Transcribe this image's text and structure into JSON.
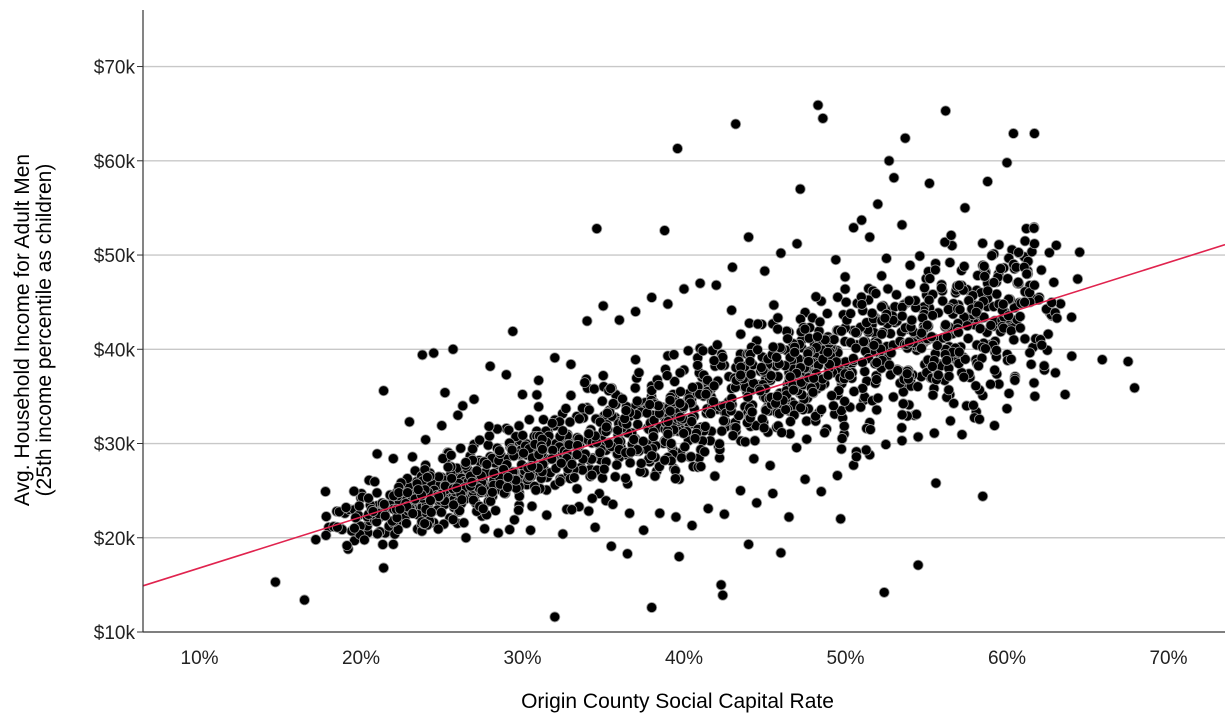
{
  "chart_data": {
    "type": "scatter",
    "title": "",
    "xlabel": "Origin County Social Capital Rate",
    "ylabel_line1": "Avg. Household Income for Adult Men",
    "ylabel_line2": "(25th income percentile as children)",
    "xlim": [
      0.065,
      0.735
    ],
    "ylim": [
      10000,
      76000
    ],
    "x_ticks": [
      0.1,
      0.2,
      0.3,
      0.4,
      0.5,
      0.6,
      0.7
    ],
    "x_tick_labels": [
      "10%",
      "20%",
      "30%",
      "40%",
      "50%",
      "60%",
      "70%"
    ],
    "y_ticks": [
      10000,
      20000,
      30000,
      40000,
      50000,
      60000,
      70000
    ],
    "y_tick_labels": [
      "$10k",
      "$20k",
      "$30k",
      "$40k",
      "$50k",
      "$60k",
      "$70k"
    ],
    "grid": "horizontal",
    "fit_line": {
      "x": [
        0.065,
        0.735
      ],
      "y": [
        14900,
        51100
      ],
      "color": "#e0234e"
    },
    "marker_color": "#000000",
    "points": [
      [
        0.147,
        15300
      ],
      [
        0.165,
        13400
      ],
      [
        0.178,
        24900
      ],
      [
        0.172,
        19800
      ],
      [
        0.18,
        21100
      ],
      [
        0.196,
        19700
      ],
      [
        0.214,
        35600
      ],
      [
        0.214,
        16800
      ],
      [
        0.238,
        39400
      ],
      [
        0.245,
        39600
      ],
      [
        0.252,
        35400
      ],
      [
        0.257,
        40000
      ],
      [
        0.263,
        34000
      ],
      [
        0.294,
        41900
      ],
      [
        0.32,
        11600
      ],
      [
        0.346,
        52800
      ],
      [
        0.38,
        12600
      ],
      [
        0.388,
        52600
      ],
      [
        0.396,
        61300
      ],
      [
        0.397,
        18000
      ],
      [
        0.423,
        15000
      ],
      [
        0.424,
        13900
      ],
      [
        0.432,
        63900
      ],
      [
        0.44,
        19300
      ],
      [
        0.46,
        18400
      ],
      [
        0.472,
        57000
      ],
      [
        0.483,
        65900
      ],
      [
        0.486,
        64500
      ],
      [
        0.497,
        22000
      ],
      [
        0.524,
        14200
      ],
      [
        0.527,
        60000
      ],
      [
        0.537,
        62400
      ],
      [
        0.545,
        17100
      ],
      [
        0.556,
        25800
      ],
      [
        0.562,
        65300
      ],
      [
        0.585,
        24400
      ],
      [
        0.604,
        62900
      ],
      [
        0.617,
        62900
      ],
      [
        0.645,
        50300
      ],
      [
        0.659,
        38900
      ],
      [
        0.675,
        38700
      ],
      [
        0.679,
        35900
      ],
      [
        0.64,
        43400
      ],
      [
        0.636,
        35200
      ],
      [
        0.62,
        45500
      ],
      [
        0.612,
        52800
      ],
      [
        0.6,
        59800
      ],
      [
        0.588,
        57800
      ],
      [
        0.574,
        55000
      ],
      [
        0.566,
        51000
      ],
      [
        0.552,
        57600
      ],
      [
        0.546,
        49900
      ],
      [
        0.53,
        58200
      ],
      [
        0.52,
        55400
      ],
      [
        0.51,
        53700
      ],
      [
        0.505,
        52900
      ],
      [
        0.494,
        49500
      ],
      [
        0.47,
        51200
      ],
      [
        0.46,
        50200
      ],
      [
        0.45,
        48300
      ],
      [
        0.44,
        51900
      ],
      [
        0.43,
        48700
      ],
      [
        0.42,
        46800
      ],
      [
        0.41,
        47000
      ],
      [
        0.4,
        46400
      ],
      [
        0.39,
        44800
      ],
      [
        0.38,
        45500
      ],
      [
        0.37,
        44000
      ],
      [
        0.36,
        43100
      ],
      [
        0.35,
        44600
      ],
      [
        0.34,
        43000
      ],
      [
        0.33,
        38400
      ],
      [
        0.32,
        39100
      ],
      [
        0.31,
        36700
      ],
      [
        0.3,
        35200
      ],
      [
        0.29,
        37300
      ],
      [
        0.28,
        38200
      ],
      [
        0.27,
        34700
      ],
      [
        0.26,
        33000
      ],
      [
        0.25,
        31900
      ],
      [
        0.24,
        30400
      ],
      [
        0.23,
        32300
      ],
      [
        0.22,
        28400
      ],
      [
        0.21,
        28900
      ],
      [
        0.2,
        24200
      ],
      [
        0.19,
        22600
      ],
      [
        0.185,
        22800
      ],
      [
        0.205,
        26100
      ],
      [
        0.215,
        20500
      ],
      [
        0.22,
        19300
      ],
      [
        0.225,
        22900
      ],
      [
        0.235,
        23400
      ],
      [
        0.245,
        21600
      ],
      [
        0.255,
        22100
      ],
      [
        0.265,
        20000
      ],
      [
        0.275,
        22300
      ],
      [
        0.285,
        20500
      ],
      [
        0.295,
        21900
      ],
      [
        0.305,
        20800
      ],
      [
        0.315,
        22400
      ],
      [
        0.325,
        20400
      ],
      [
        0.335,
        23300
      ],
      [
        0.345,
        21100
      ],
      [
        0.355,
        19100
      ],
      [
        0.365,
        18300
      ],
      [
        0.375,
        20800
      ],
      [
        0.385,
        22600
      ],
      [
        0.395,
        22200
      ],
      [
        0.405,
        21300
      ],
      [
        0.415,
        23100
      ],
      [
        0.425,
        22500
      ],
      [
        0.435,
        25000
      ],
      [
        0.445,
        23700
      ],
      [
        0.455,
        24700
      ],
      [
        0.465,
        22200
      ],
      [
        0.475,
        26200
      ],
      [
        0.485,
        24900
      ],
      [
        0.495,
        26600
      ],
      [
        0.505,
        27700
      ],
      [
        0.515,
        28800
      ],
      [
        0.525,
        29900
      ],
      [
        0.535,
        30300
      ],
      [
        0.545,
        30700
      ],
      [
        0.555,
        31100
      ],
      [
        0.565,
        32400
      ],
      [
        0.575,
        34000
      ],
      [
        0.585,
        35100
      ],
      [
        0.595,
        36300
      ],
      [
        0.605,
        37100
      ],
      [
        0.615,
        38400
      ],
      [
        0.625,
        39900
      ],
      [
        0.63,
        37500
      ],
      [
        0.6,
        33700
      ],
      [
        0.59,
        40500
      ],
      [
        0.58,
        42600
      ],
      [
        0.57,
        44700
      ],
      [
        0.56,
        46200
      ],
      [
        0.55,
        47500
      ],
      [
        0.54,
        48900
      ],
      [
        0.535,
        53200
      ],
      [
        0.515,
        51900
      ],
      [
        0.525,
        44200
      ],
      [
        0.485,
        45100
      ],
      [
        0.475,
        43900
      ],
      [
        0.465,
        41800
      ],
      [
        0.455,
        42700
      ],
      [
        0.445,
        40900
      ],
      [
        0.435,
        39500
      ],
      [
        0.425,
        38300
      ],
      [
        0.41,
        40100
      ],
      [
        0.4,
        37800
      ],
      [
        0.39,
        39300
      ],
      [
        0.38,
        36100
      ],
      [
        0.37,
        38900
      ],
      [
        0.36,
        34900
      ],
      [
        0.35,
        37200
      ],
      [
        0.34,
        33800
      ],
      [
        0.33,
        35100
      ],
      [
        0.32,
        32500
      ],
      [
        0.31,
        33900
      ],
      [
        0.3,
        30400
      ],
      [
        0.29,
        31600
      ],
      [
        0.28,
        28600
      ],
      [
        0.27,
        29900
      ],
      [
        0.26,
        27100
      ],
      [
        0.25,
        26400
      ],
      [
        0.24,
        27700
      ],
      [
        0.23,
        25000
      ],
      [
        0.22,
        24300
      ],
      [
        0.21,
        23400
      ]
    ]
  }
}
